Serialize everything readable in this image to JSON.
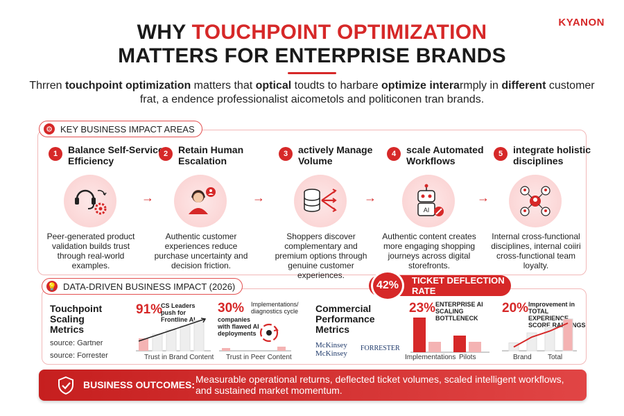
{
  "brand": {
    "logo": "KYANON",
    "accent": "#d62828"
  },
  "title": {
    "prefix": "WHY",
    "highlight": "TOUCHPOINT OPTIMIZATION",
    "line2": "MATTERS FOR ENTERPRISE BRANDS"
  },
  "intro": {
    "t1": "Thrren ",
    "b1": "touchpoint optimization",
    "t2": " matters that ",
    "b2": "optical",
    "t3": " toudts to harbare ",
    "b3": "optimize intera",
    "t4": "rmply in ",
    "b4": "different",
    "t5": " customer frat, a endence professionalist aicometols and politiconen tran brands."
  },
  "section1": {
    "heading": "KEY BUSINESS IMPACT AREAS",
    "icon": "gear-icon",
    "steps": [
      {
        "num": "1",
        "title": "Balance Self-Service Efficiency",
        "icon": "headset-gear-icon",
        "desc": "Peer-generated product validation builds trust through real-world examples."
      },
      {
        "num": "2",
        "title": "Retain Human Escalation",
        "icon": "agent-person-icon",
        "desc": "Authentic customer experiences reduce purchase uncertainty and decision friction."
      },
      {
        "num": "3",
        "title": "actively Manage Volume",
        "icon": "database-arrows-icon",
        "desc": "Shoppers discover complementary and premium options through genuine customer experiences."
      },
      {
        "num": "4",
        "title": "scale Automated Workflows",
        "icon": "ai-robot-icon",
        "desc": "Authentic content creates more engaging shopping journeys across digital storefronts."
      },
      {
        "num": "5",
        "title": "integrate holistic disciplines",
        "icon": "team-network-icon",
        "desc": "Internal cross-functional disciplines, internal coiiri cross-functional team loyalty."
      }
    ]
  },
  "section2": {
    "heading": "DATA-DRIVEN BUSINESS IMPACT (2026)",
    "icon": "lightbulb-icon",
    "deflection": {
      "pct": "42%",
      "label": "TICKET DEFLECTION RATE"
    },
    "left": {
      "title": "Touchpoint Scaling Metrics",
      "source1": "source: Gartner",
      "source2": "source: Forrester",
      "stat1": {
        "pct": "91%",
        "text": "CS Leaders push for Frontline AI",
        "axis": "Trust in Brand Content"
      },
      "stat2": {
        "pct": "30%",
        "text": "companies with flawed AI deployments",
        "note": "Implementations/ diagnostics cycle",
        "axis": "Trust in Peer Content"
      }
    },
    "right": {
      "title": "Commercial Performance Metrics",
      "logo1a": "McKinsey",
      "logo1b": "McKinsey",
      "logo2": "FORRESTER",
      "stat1": {
        "pct": "23%",
        "text": "ENTERPRISE AI SCALING BOTTLENECK",
        "axis1": "Implementations",
        "axis2": "Pilots"
      },
      "stat2": {
        "pct": "20%",
        "text": "Improvement in TOTAL EXPERIENCE SCORE RANKINGS",
        "axis1": "Brand",
        "axis2": "Total"
      }
    }
  },
  "chart_data": [
    {
      "type": "bar",
      "categories": [
        "Implementations",
        "",
        "Pilots",
        ""
      ],
      "values": [
        100,
        30,
        48,
        30
      ],
      "title": "",
      "xlabel": "",
      "ylabel": ""
    },
    {
      "type": "bar",
      "categories": [
        "Brand",
        "",
        "",
        "Total"
      ],
      "values": [
        20,
        45,
        60,
        80
      ],
      "title": "",
      "xlabel": "",
      "ylabel": ""
    }
  ],
  "footer": {
    "label": "BUSINESS OUTCOMES:",
    "text": "Measurable operational returns, deflected ticket volumes, scaled intelligent workflows, and sustained market momentum.",
    "icon": "shield-check-icon"
  }
}
